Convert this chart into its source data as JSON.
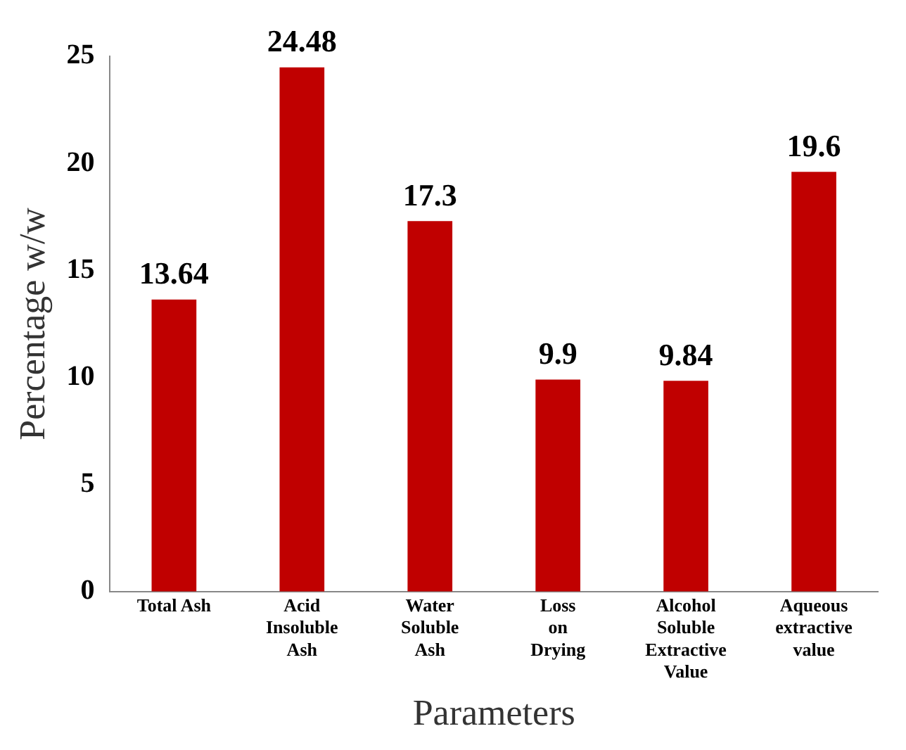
{
  "chart_data": {
    "type": "bar",
    "categories": [
      "Total Ash",
      "Acid Insoluble Ash",
      "Water Soluble Ash",
      "Loss on Drying",
      "Alcohol Soluble Extractive Value",
      "Aqueous extractive value"
    ],
    "values": [
      13.64,
      24.48,
      17.3,
      9.9,
      9.84,
      19.6
    ],
    "color": "#c00000",
    "ylim": [
      0,
      25
    ],
    "yticks": [
      0,
      5,
      10,
      15,
      20,
      25
    ],
    "grid": false,
    "data_labels": true,
    "xlabel": "Parameters",
    "ylabel": "Percentage w/w",
    "legend": false
  }
}
